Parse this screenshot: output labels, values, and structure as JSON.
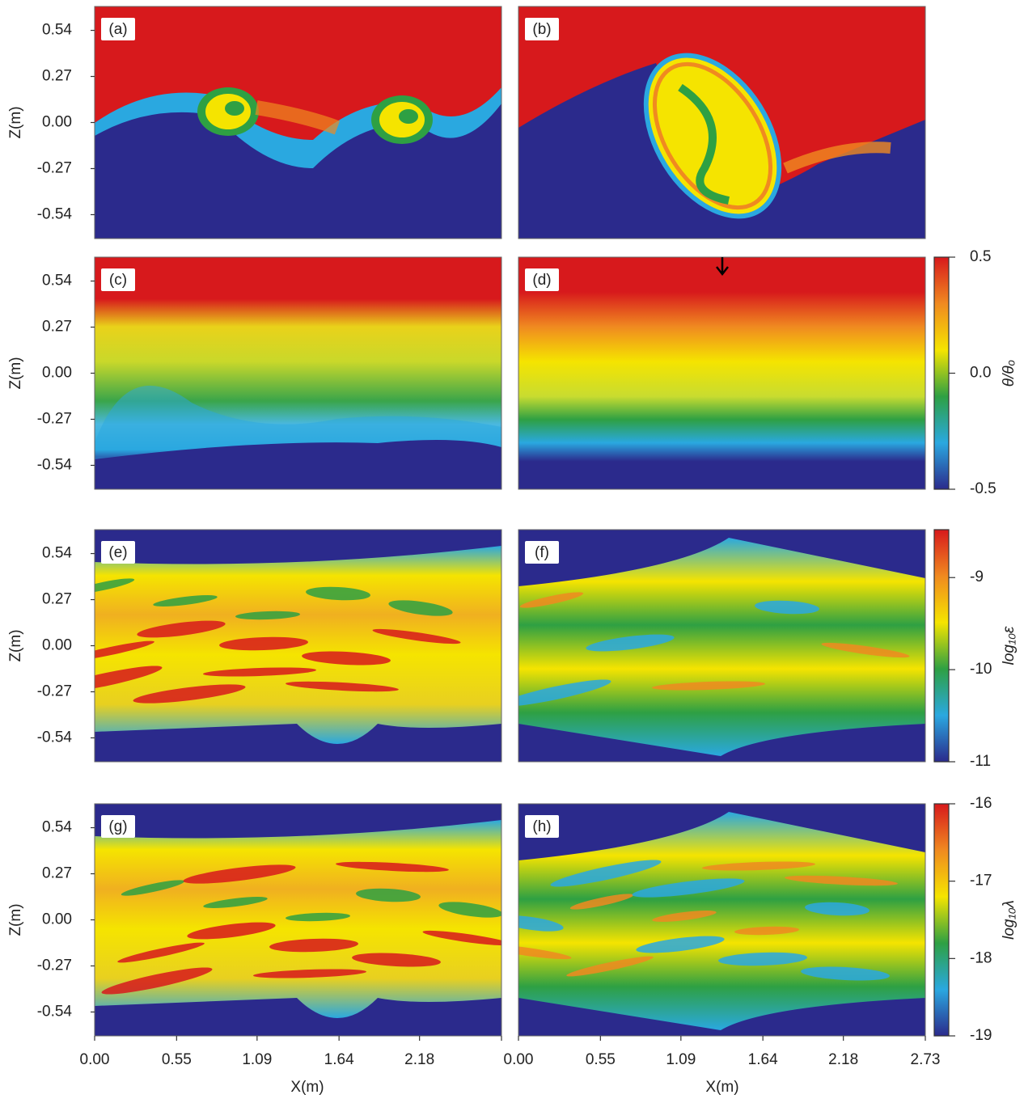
{
  "panels": [
    {
      "label": "(a)"
    },
    {
      "label": "(b)"
    },
    {
      "label": "(c)"
    },
    {
      "label": "(d)"
    },
    {
      "label": "(e)"
    },
    {
      "label": "(f)"
    },
    {
      "label": "(g)"
    },
    {
      "label": "(h)"
    }
  ],
  "z_axis": {
    "label": "Z(m)",
    "lim": [
      -0.68,
      0.68
    ],
    "ticks": [
      0.54,
      0.27,
      {
        "value": 0,
        "label": "0.00"
      },
      -0.27,
      -0.54
    ]
  },
  "x_axis": {
    "label": "X(m)",
    "lim": [
      0,
      2.73
    ],
    "ticks": [
      {
        "value": 0,
        "label": "0.00"
      },
      0.55,
      1.09,
      1.64,
      2.18,
      2.73
    ]
  },
  "colorbars": [
    {
      "label": "θ/θₒ",
      "lim": [
        -0.5,
        0.5
      ],
      "ticks": [
        0.5,
        {
          "value": 0,
          "label": "0.0"
        },
        -0.5
      ]
    },
    {
      "label": "log₁₀ε",
      "lim": [
        -11,
        -8.48
      ],
      "ticks": [
        -9,
        -10,
        -11
      ]
    },
    {
      "label": "log₁₀λ",
      "lim": [
        -19,
        -16
      ],
      "ticks": [
        -16,
        -17,
        -18,
        -19
      ]
    }
  ]
}
